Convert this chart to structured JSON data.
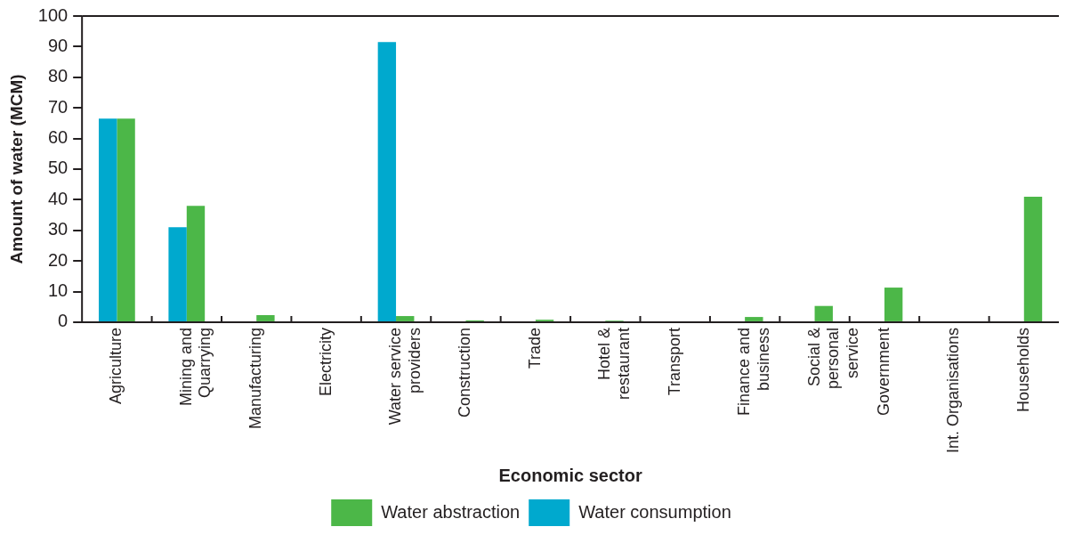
{
  "chart_data": {
    "type": "bar",
    "xlabel": "Economic sector",
    "ylabel": "Amount of water (MCM)",
    "categories": [
      "Agriculture",
      "Mining and\nQuarrying",
      "Manufacturing",
      "Electricity",
      "Water service\nproviders",
      "Construction",
      "Trade",
      "Hotel &\nrestaurant",
      "Transport",
      "Finance and\nbusiness",
      "Social &\npersonal\nservice",
      "Government",
      "Int. Organisations",
      "Households"
    ],
    "series": [
      {
        "name": "Water consumption",
        "color": "#00a9ce",
        "values": [
          66.5,
          31,
          null,
          null,
          91.5,
          null,
          null,
          null,
          null,
          null,
          null,
          null,
          null,
          null
        ]
      },
      {
        "name": "Water abstraction",
        "color": "#4cb748",
        "values": [
          66.5,
          38,
          2.3,
          null,
          2,
          0.6,
          0.8,
          0.5,
          null,
          1.7,
          5.3,
          11.3,
          null,
          41
        ]
      }
    ],
    "ylim": [
      0,
      100
    ],
    "yticks": [
      0,
      10,
      20,
      30,
      40,
      50,
      60,
      70,
      80,
      90,
      100
    ],
    "grid": false,
    "legend": "bottom"
  }
}
